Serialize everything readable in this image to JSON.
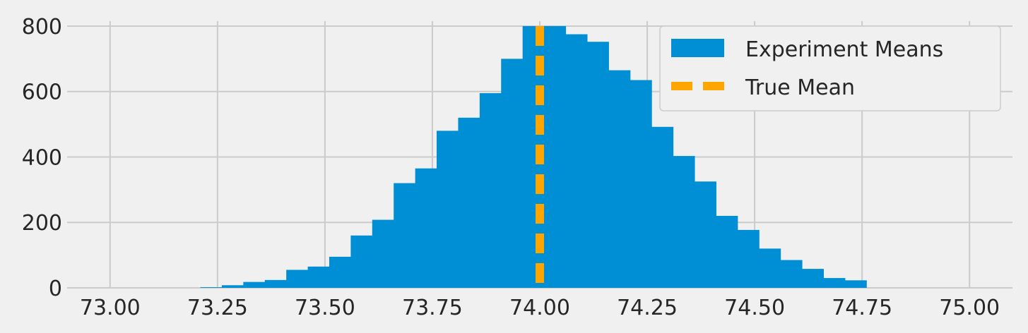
{
  "chart_data": {
    "type": "bar",
    "title": "",
    "xlabel": "",
    "ylabel": "",
    "xlim": [
      72.9,
      75.1
    ],
    "ylim": [
      0,
      815
    ],
    "grid": true,
    "legend_placement": "top-right",
    "x_ticks": [
      73.0,
      73.25,
      73.5,
      73.75,
      74.0,
      74.25,
      74.5,
      74.75,
      75.0
    ],
    "x_tick_labels": [
      "73.00",
      "73.25",
      "73.50",
      "73.75",
      "74.00",
      "74.25",
      "74.50",
      "74.75",
      "75.00"
    ],
    "y_ticks": [
      0,
      200,
      400,
      600,
      800
    ],
    "y_tick_labels": [
      "0",
      "200",
      "400",
      "600",
      "800"
    ],
    "histogram": {
      "name": "Experiment Means",
      "color": "#008fd5",
      "bin_start": 73.21,
      "bin_width": 0.05,
      "counts": [
        2,
        8,
        18,
        24,
        55,
        65,
        95,
        160,
        208,
        320,
        365,
        480,
        520,
        595,
        700,
        800,
        800,
        775,
        752,
        665,
        635,
        492,
        403,
        325,
        220,
        177,
        120,
        85,
        58,
        30,
        23
      ]
    },
    "reference_line": {
      "name": "True Mean",
      "x": 74.0,
      "color": "#ffa500",
      "style": "dashed"
    },
    "legend": {
      "entries": [
        "Experiment Means",
        "True Mean"
      ]
    }
  }
}
